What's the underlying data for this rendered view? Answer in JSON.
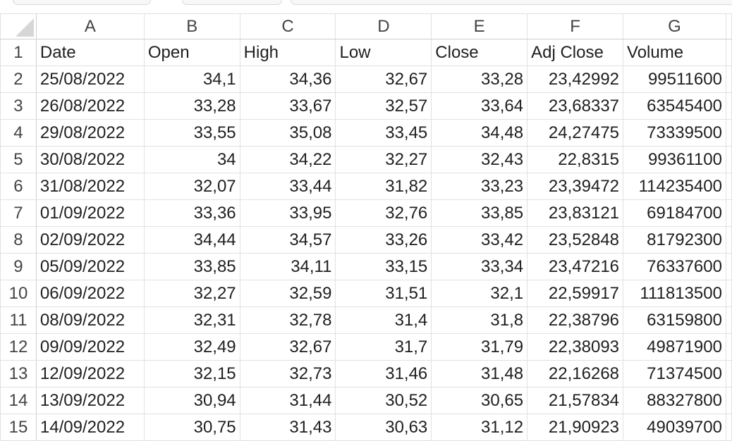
{
  "columns": [
    "A",
    "B",
    "C",
    "D",
    "E",
    "F",
    "G"
  ],
  "rows": [
    {
      "n": "1",
      "cells": [
        "Date",
        "Open",
        "High",
        "Low",
        "Close",
        "Adj Close",
        "Volume"
      ]
    },
    {
      "n": "2",
      "cells": [
        "25/08/2022",
        "34,1",
        "34,36",
        "32,67",
        "33,28",
        "23,42992",
        "99511600"
      ]
    },
    {
      "n": "3",
      "cells": [
        "26/08/2022",
        "33,28",
        "33,67",
        "32,57",
        "33,64",
        "23,68337",
        "63545400"
      ]
    },
    {
      "n": "4",
      "cells": [
        "29/08/2022",
        "33,55",
        "35,08",
        "33,45",
        "34,48",
        "24,27475",
        "73339500"
      ]
    },
    {
      "n": "5",
      "cells": [
        "30/08/2022",
        "34",
        "34,22",
        "32,27",
        "32,43",
        "22,8315",
        "99361100"
      ]
    },
    {
      "n": "6",
      "cells": [
        "31/08/2022",
        "32,07",
        "33,44",
        "31,82",
        "33,23",
        "23,39472",
        "114235400"
      ]
    },
    {
      "n": "7",
      "cells": [
        "01/09/2022",
        "33,36",
        "33,95",
        "32,76",
        "33,85",
        "23,83121",
        "69184700"
      ]
    },
    {
      "n": "8",
      "cells": [
        "02/09/2022",
        "34,44",
        "34,57",
        "33,26",
        "33,42",
        "23,52848",
        "81792300"
      ]
    },
    {
      "n": "9",
      "cells": [
        "05/09/2022",
        "33,85",
        "34,11",
        "33,15",
        "33,34",
        "23,47216",
        "76337600"
      ]
    },
    {
      "n": "10",
      "cells": [
        "06/09/2022",
        "32,27",
        "32,59",
        "31,51",
        "32,1",
        "22,59917",
        "111813500"
      ]
    },
    {
      "n": "11",
      "cells": [
        "08/09/2022",
        "32,31",
        "32,78",
        "31,4",
        "31,8",
        "22,38796",
        "63159800"
      ]
    },
    {
      "n": "12",
      "cells": [
        "09/09/2022",
        "32,49",
        "32,67",
        "31,7",
        "31,79",
        "22,38093",
        "49871900"
      ]
    },
    {
      "n": "13",
      "cells": [
        "12/09/2022",
        "32,15",
        "32,73",
        "31,46",
        "31,48",
        "22,16268",
        "71374500"
      ]
    },
    {
      "n": "14",
      "cells": [
        "13/09/2022",
        "30,94",
        "31,44",
        "30,52",
        "30,65",
        "21,57834",
        "88327800"
      ]
    },
    {
      "n": "15",
      "cells": [
        "14/09/2022",
        "30,75",
        "31,43",
        "30,63",
        "31,12",
        "21,90923",
        "49039700"
      ]
    }
  ]
}
